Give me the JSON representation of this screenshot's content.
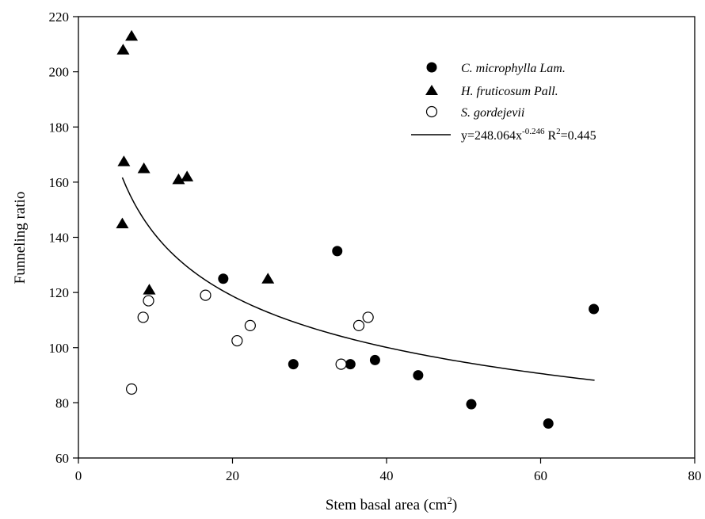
{
  "chart_data": {
    "type": "scatter",
    "xlabel": "Stem basal area (cm",
    "xlabel_sup": "2",
    "xlabel_suffix": ")",
    "ylabel": "Funneling ratio",
    "xlim": [
      0,
      80
    ],
    "ylim": [
      60,
      220
    ],
    "x_ticks": [
      0,
      20,
      40,
      60,
      80
    ],
    "y_ticks": [
      60,
      80,
      100,
      120,
      140,
      160,
      180,
      200,
      220
    ],
    "grid": false,
    "legend_position": "top-right",
    "series": [
      {
        "name": "C. microphylla Lam.",
        "marker": "filled-circle",
        "color": "#000000",
        "points": [
          [
            18.8,
            125
          ],
          [
            27.9,
            94
          ],
          [
            33.6,
            135
          ],
          [
            35.3,
            94
          ],
          [
            38.5,
            95.5
          ],
          [
            44.1,
            90
          ],
          [
            51.0,
            79.5
          ],
          [
            61.0,
            72.5
          ],
          [
            66.9,
            114
          ]
        ]
      },
      {
        "name": "H. fruticosum Pall.",
        "marker": "filled-triangle",
        "color": "#000000",
        "points": [
          [
            5.8,
            208
          ],
          [
            6.9,
            213
          ],
          [
            5.9,
            167.5
          ],
          [
            8.5,
            165
          ],
          [
            13.0,
            161
          ],
          [
            14.1,
            162
          ],
          [
            5.7,
            145
          ],
          [
            9.2,
            121
          ],
          [
            24.6,
            125
          ]
        ]
      },
      {
        "name": "S. gordejevii",
        "marker": "open-circle",
        "color": "#000000",
        "points": [
          [
            6.9,
            85
          ],
          [
            8.4,
            111
          ],
          [
            9.1,
            117
          ],
          [
            16.5,
            119
          ],
          [
            20.6,
            102.5
          ],
          [
            22.3,
            108
          ],
          [
            34.1,
            94
          ],
          [
            36.4,
            108
          ],
          [
            37.6,
            111
          ]
        ]
      }
    ],
    "fit": {
      "label_prefix": "y=248.064x",
      "exponent_label": "-0.246",
      "r2_prefix": " R",
      "r2_sup": "2",
      "r2_suffix": "=0.445",
      "a": 248.064,
      "b": -0.246,
      "x_range": [
        5.7,
        67.0
      ]
    }
  }
}
